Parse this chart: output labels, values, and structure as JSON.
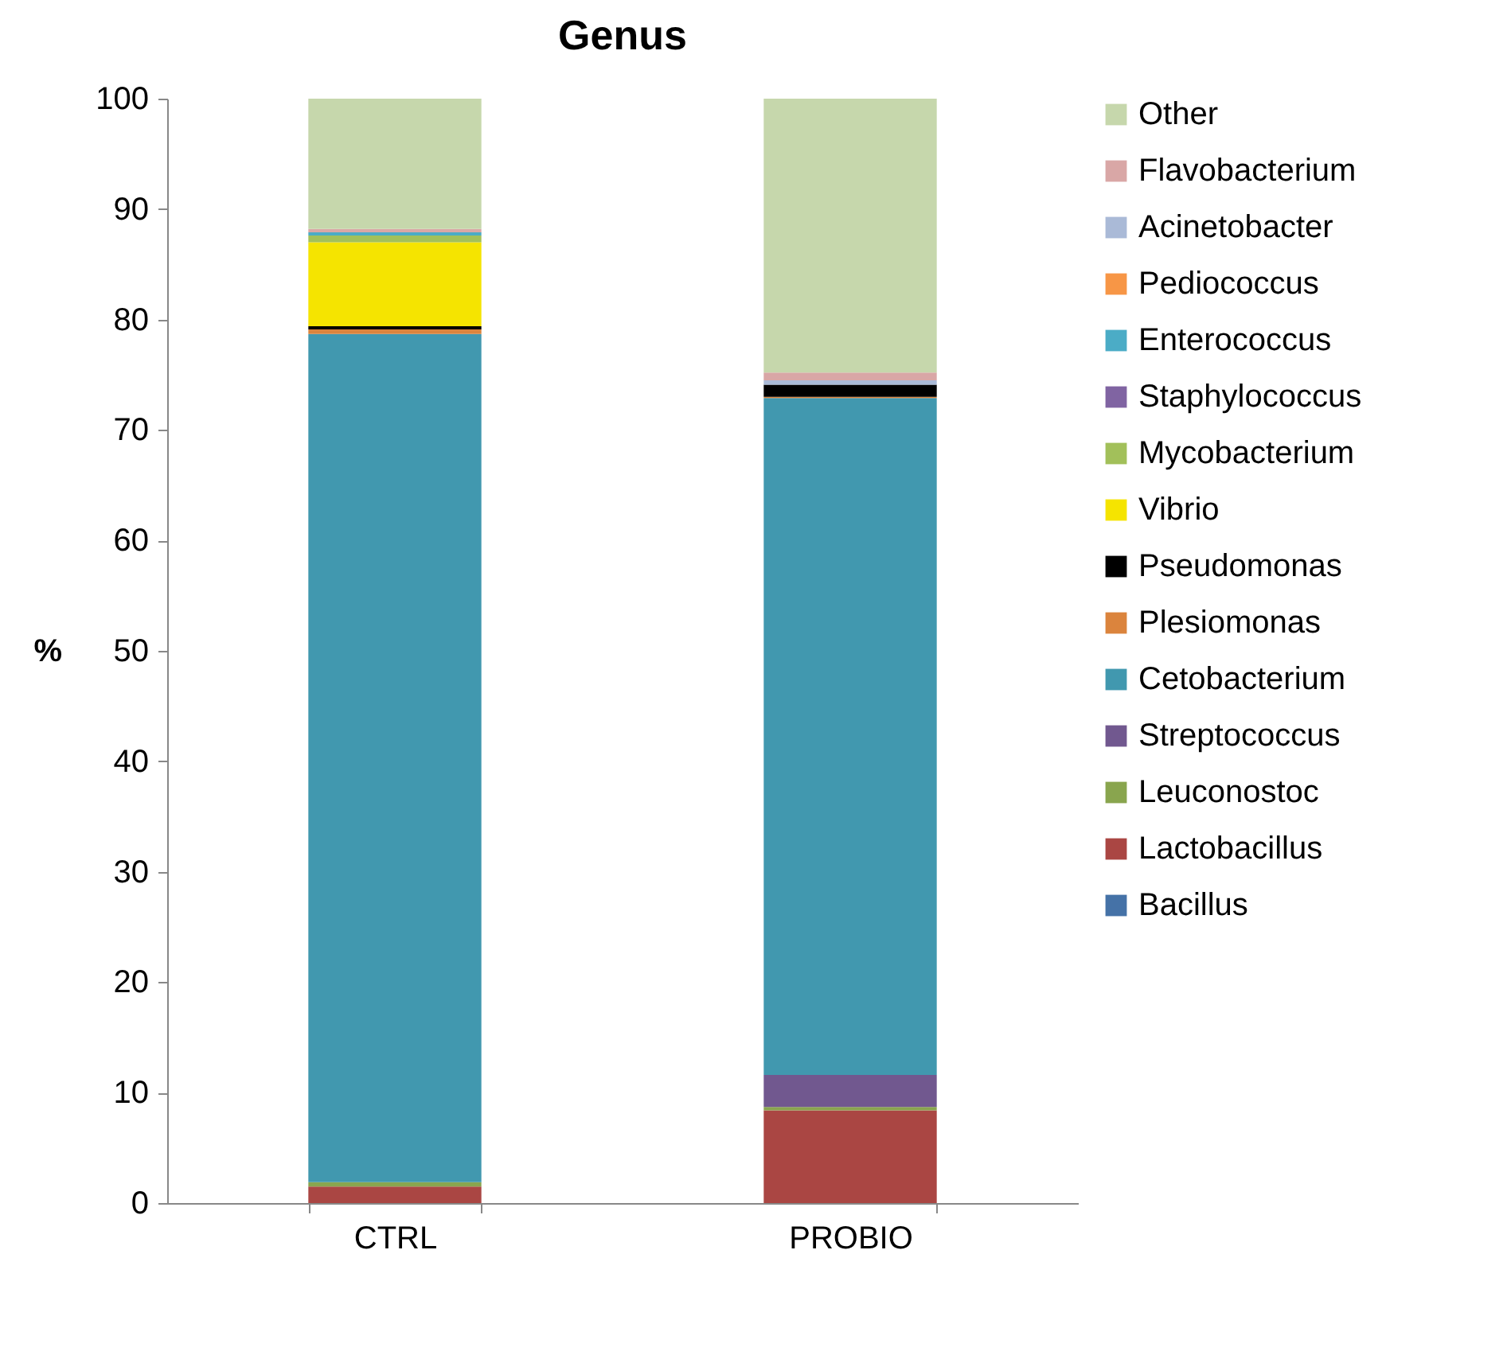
{
  "chart_data": {
    "type": "bar",
    "title": "Genus",
    "ylabel": "%",
    "categories": [
      "CTRL",
      "PROBIO"
    ],
    "stacked": true,
    "ylim": [
      0,
      100
    ],
    "yticks": [
      0,
      10,
      20,
      30,
      40,
      50,
      60,
      70,
      80,
      90,
      100
    ],
    "grid": false,
    "legend": "right",
    "series": [
      {
        "name": "Bacillus",
        "color": "#4572a7",
        "values": [
          0,
          0
        ]
      },
      {
        "name": "Lactobacillus",
        "color": "#aa4643",
        "values": [
          1.5,
          8.4
        ]
      },
      {
        "name": "Leuconostoc",
        "color": "#89a54e",
        "values": [
          0.4,
          0.3
        ]
      },
      {
        "name": "Streptococcus",
        "color": "#71588f",
        "values": [
          0,
          2.9
        ]
      },
      {
        "name": "Cetobacterium",
        "color": "#4198af",
        "values": [
          76.8,
          61.3
        ]
      },
      {
        "name": "Plesiomonas",
        "color": "#db843d",
        "values": [
          0.4,
          0.1
        ]
      },
      {
        "name": "Pseudomonas",
        "color": "#000000",
        "values": [
          0.3,
          1.1
        ]
      },
      {
        "name": "Vibrio",
        "color": "#f5e400",
        "values": [
          7.6,
          0
        ]
      },
      {
        "name": "Mycobacterium",
        "color": "#a2c05a",
        "values": [
          0.6,
          0
        ]
      },
      {
        "name": "Staphylococcus",
        "color": "#8064a2",
        "values": [
          0,
          0
        ]
      },
      {
        "name": "Enterococcus",
        "color": "#4bacc6",
        "values": [
          0.3,
          0
        ]
      },
      {
        "name": "Pediococcus",
        "color": "#f79646",
        "values": [
          0,
          0
        ]
      },
      {
        "name": "Acinetobacter",
        "color": "#aabad7",
        "values": [
          0,
          0.4
        ]
      },
      {
        "name": "Flavobacterium",
        "color": "#d9a7a6",
        "values": [
          0.3,
          0.7
        ]
      },
      {
        "name": "Other",
        "color": "#c6d7ac",
        "values": [
          11.8,
          24.8
        ]
      }
    ]
  }
}
